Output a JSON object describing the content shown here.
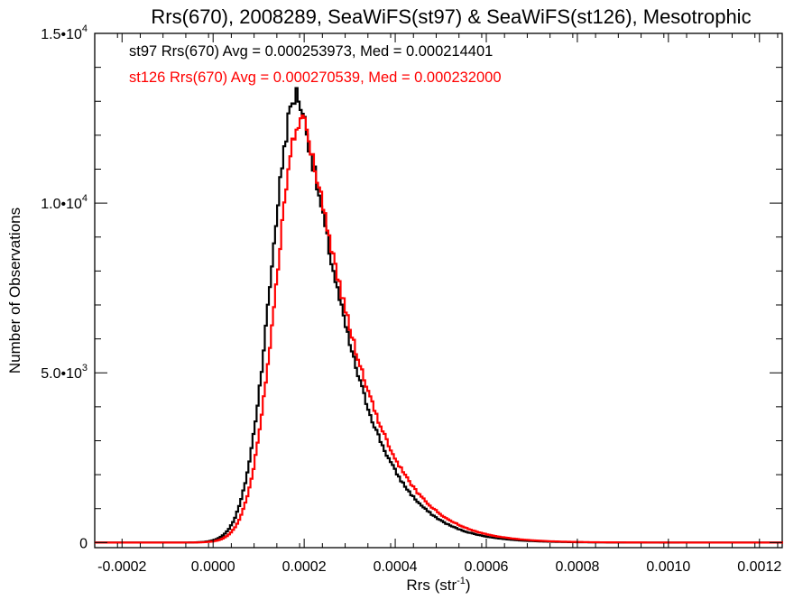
{
  "chart_data": {
    "type": "line",
    "title": "Rrs(670), 2008289, SeaWiFS(st97) & SeaWiFS(st126), Mesotrophic",
    "xlabel": {
      "main": "Rrs (str",
      "sup": "-1",
      "close": ")"
    },
    "ylabel": "Number of Observations",
    "xlim": [
      -0.00026,
      0.00125
    ],
    "ylim": [
      -150,
      15000
    ],
    "x_ticks": [
      {
        "value": -0.0002,
        "label": "-0.0002"
      },
      {
        "value": 0.0,
        "label": "0.0000"
      },
      {
        "value": 0.0002,
        "label": "0.0002"
      },
      {
        "value": 0.0004,
        "label": "0.0004"
      },
      {
        "value": 0.0006,
        "label": "0.0006"
      },
      {
        "value": 0.0008,
        "label": "0.0008"
      },
      {
        "value": 0.001,
        "label": "0.0010"
      },
      {
        "value": 0.0012,
        "label": "0.0012"
      }
    ],
    "x_minor_step": 5e-05,
    "y_ticks": [
      {
        "value": 0,
        "mantissa": "0",
        "exp": ""
      },
      {
        "value": 5000,
        "mantissa": "5.0•10",
        "exp": "3"
      },
      {
        "value": 10000,
        "mantissa": "1.0•10",
        "exp": "4"
      },
      {
        "value": 15000,
        "mantissa": "1.5•10",
        "exp": "4"
      }
    ],
    "y_minor_step": 1000,
    "series": [
      {
        "name": "st97",
        "color": "#000000",
        "stats_text": "st97 Rrs(670) Avg = 0.000253973, Med = 0.000214401",
        "shift": 0.0,
        "scale": 1.0,
        "peak_count": 13200,
        "noise": 300
      },
      {
        "name": "st126",
        "color": "#ff0000",
        "stats_text": "st126 Rrs(670) Avg = 0.000270539, Med = 0.000232000",
        "shift": 1e-05,
        "scale": 1.05,
        "peak_count": 12500,
        "noise": 260
      }
    ],
    "profile": {
      "mode": 0.000185,
      "sigma_left": 5.7e-05,
      "sigma_right": 0.000135,
      "right_power": 1.3,
      "bin_width": 4.5e-06,
      "x_start": -0.00026,
      "x_end": 0.00125
    }
  }
}
